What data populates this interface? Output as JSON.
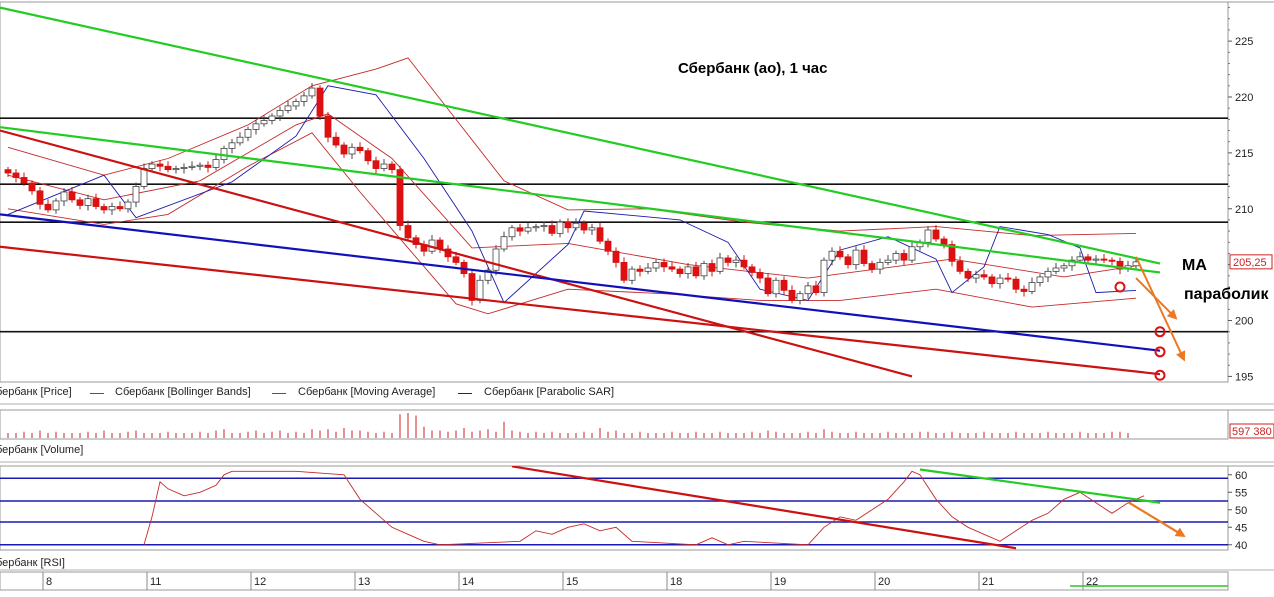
{
  "chart_data": [
    {
      "type": "candlestick",
      "panel": "price",
      "title": "Сбербанк (ао),  1 час",
      "y_ticks": [
        195,
        200,
        205,
        210,
        215,
        220,
        225
      ],
      "ylim": [
        194.5,
        228.5
      ],
      "last_price_label": "205,25",
      "x_day_labels": [
        "8",
        "11",
        "12",
        "13",
        "14",
        "15",
        "18",
        "19",
        "20",
        "21",
        "22"
      ],
      "series_legend": [
        "Сбербанк [Price]",
        "Сбербанк [Bollinger Bands]",
        "Сбербанк [Moving Average]",
        "Сбербанк [Parabolic SAR]"
      ],
      "closes": [
        213.2,
        212.8,
        212.3,
        211.6,
        210.4,
        209.9,
        210.7,
        211.5,
        210.8,
        210.3,
        210.9,
        210.2,
        209.9,
        210.2,
        210.0,
        210.6,
        212.0,
        213.6,
        214.0,
        213.8,
        213.5,
        213.6,
        213.7,
        213.8,
        213.9,
        213.7,
        214.4,
        215.4,
        215.9,
        216.4,
        217.1,
        217.6,
        217.9,
        218.3,
        218.8,
        219.2,
        219.6,
        220.1,
        220.8,
        218.3,
        216.4,
        215.7,
        214.9,
        215.5,
        215.2,
        214.3,
        213.6,
        214.0,
        213.5,
        208.5,
        207.4,
        206.8,
        206.2,
        207.2,
        206.4,
        205.7,
        205.2,
        204.2,
        201.8,
        203.6,
        204.5,
        206.4,
        207.5,
        208.3,
        208.0,
        208.3,
        208.4,
        208.5,
        207.8,
        208.8,
        208.3,
        208.7,
        208.1,
        208.3,
        207.1,
        206.2,
        205.2,
        203.6,
        204.6,
        204.4,
        204.7,
        205.2,
        204.8,
        204.6,
        204.2,
        204.8,
        204.0,
        205.1,
        204.4,
        205.6,
        205.2,
        205.4,
        204.8,
        204.3,
        203.8,
        202.4,
        203.6,
        202.7,
        201.8,
        202.4,
        203.1,
        202.5,
        205.4,
        206.2,
        205.7,
        205.0,
        206.3,
        205.1,
        204.6,
        205.2,
        205.4,
        206.0,
        205.4,
        206.6,
        207.0,
        208.1,
        207.3,
        206.8,
        205.3,
        204.4,
        203.8,
        204.1,
        203.9,
        203.3,
        203.8,
        203.7,
        202.8,
        202.6,
        203.4,
        203.9,
        204.4,
        204.7,
        204.9,
        205.4,
        205.7,
        205.4,
        205.5,
        205.4,
        205.3,
        204.6,
        204.9,
        205.25
      ],
      "moving_average": [
        [
          0,
          213.0
        ],
        [
          12,
          210.8
        ],
        [
          24,
          212.5
        ],
        [
          36,
          217.5
        ],
        [
          40,
          218.5
        ],
        [
          48,
          214.5
        ],
        [
          58,
          206.5
        ],
        [
          70,
          206.9
        ],
        [
          85,
          205.0
        ],
        [
          100,
          203.8
        ],
        [
          118,
          205.5
        ],
        [
          132,
          203.9
        ],
        [
          141,
          204.9
        ]
      ],
      "bollinger_upper": [
        [
          0,
          215.5
        ],
        [
          12,
          213.0
        ],
        [
          20,
          214.5
        ],
        [
          30,
          217.5
        ],
        [
          38,
          221.0
        ],
        [
          46,
          222.5
        ],
        [
          50,
          223.5
        ],
        [
          56,
          218.0
        ],
        [
          62,
          212.5
        ],
        [
          70,
          209.9
        ],
        [
          80,
          210.0
        ],
        [
          92,
          208.8
        ],
        [
          104,
          208.0
        ],
        [
          116,
          208.4
        ],
        [
          128,
          207.6
        ],
        [
          141,
          207.8
        ]
      ],
      "bollinger_lower": [
        [
          0,
          210.0
        ],
        [
          12,
          208.6
        ],
        [
          20,
          209.5
        ],
        [
          30,
          213.8
        ],
        [
          38,
          216.8
        ],
        [
          44,
          211.5
        ],
        [
          50,
          206.5
        ],
        [
          56,
          201.5
        ],
        [
          60,
          200.6
        ],
        [
          70,
          202.8
        ],
        [
          82,
          202.4
        ],
        [
          94,
          201.8
        ],
        [
          104,
          201.8
        ],
        [
          116,
          202.8
        ],
        [
          128,
          201.2
        ],
        [
          141,
          202.0
        ]
      ],
      "parabolic_sar": [
        [
          0,
          209.5
        ],
        [
          12,
          213.0
        ],
        [
          16,
          209.2
        ],
        [
          28,
          212.4
        ],
        [
          36,
          216.5
        ],
        [
          40,
          221.0
        ],
        [
          46,
          220.2
        ],
        [
          52,
          214.5
        ],
        [
          58,
          208.0
        ],
        [
          62,
          201.6
        ],
        [
          70,
          206.8
        ],
        [
          72,
          209.8
        ],
        [
          84,
          209.0
        ],
        [
          90,
          207.0
        ],
        [
          94,
          202.8
        ],
        [
          100,
          201.8
        ],
        [
          104,
          206.3
        ],
        [
          110,
          207.5
        ],
        [
          116,
          205.5
        ],
        [
          118,
          202.5
        ],
        [
          122,
          204.8
        ],
        [
          124,
          208.4
        ],
        [
          130,
          207.7
        ],
        [
          134,
          206.5
        ],
        [
          136,
          202.5
        ],
        [
          141,
          202.7
        ]
      ],
      "horizontal_levels": [
        199.0,
        208.8,
        212.2,
        218.1
      ],
      "trend_lines": [
        {
          "color": "#22cc22",
          "from": [
            -1,
            228.0
          ],
          "to": [
            144,
            205.1
          ]
        },
        {
          "color": "#22cc22",
          "from": [
            -1,
            217.3
          ],
          "to": [
            144,
            204.3
          ]
        },
        {
          "color": "#cc1111",
          "from": [
            -1,
            217.0
          ],
          "to": [
            113,
            195.0
          ]
        },
        {
          "color": "#cc1111",
          "from": [
            -1,
            206.6
          ],
          "to": [
            144,
            195.2
          ]
        },
        {
          "color": "#1111bb",
          "from": [
            -1,
            209.5
          ],
          "to": [
            144,
            197.3
          ]
        }
      ],
      "projection_arrows": [
        {
          "color": "#ee7722",
          "from": [
            141,
            205.7
          ],
          "to": [
            147,
            196.5
          ]
        },
        {
          "color": "#ee7722",
          "from": [
            141,
            203.8
          ],
          "to": [
            146,
            200.2
          ]
        }
      ],
      "markers": [
        {
          "shape": "circle",
          "color": "#dd1111",
          "at": [
            139,
            203.0
          ]
        },
        {
          "shape": "circle",
          "color": "#dd1111",
          "at": [
            144,
            199.0
          ]
        },
        {
          "shape": "circle",
          "color": "#dd1111",
          "at": [
            144,
            197.2
          ]
        },
        {
          "shape": "circle",
          "color": "#dd1111",
          "at": [
            144,
            195.1
          ]
        }
      ],
      "annotations": [
        "MA",
        "параболик"
      ]
    },
    {
      "type": "bar",
      "panel": "volume",
      "series_legend": [
        "Сбербанк [Volume]"
      ],
      "last_value_label": "597 380",
      "values": [
        0.2,
        0.2,
        0.25,
        0.2,
        0.3,
        0.2,
        0.25,
        0.2,
        0.2,
        0.2,
        0.25,
        0.2,
        0.3,
        0.2,
        0.2,
        0.25,
        0.3,
        0.2,
        0.2,
        0.2,
        0.25,
        0.2,
        0.2,
        0.2,
        0.25,
        0.2,
        0.3,
        0.35,
        0.2,
        0.2,
        0.25,
        0.3,
        0.2,
        0.25,
        0.3,
        0.2,
        0.25,
        0.2,
        0.35,
        0.3,
        0.35,
        0.25,
        0.4,
        0.3,
        0.3,
        0.25,
        0.2,
        0.25,
        0.2,
        0.95,
        1.0,
        0.9,
        0.45,
        0.3,
        0.3,
        0.25,
        0.3,
        0.4,
        0.25,
        0.3,
        0.35,
        0.25,
        0.65,
        0.3,
        0.25,
        0.2,
        0.25,
        0.2,
        0.25,
        0.2,
        0.2,
        0.2,
        0.25,
        0.2,
        0.4,
        0.25,
        0.3,
        0.2,
        0.2,
        0.25,
        0.2,
        0.2,
        0.2,
        0.25,
        0.2,
        0.2,
        0.25,
        0.2,
        0.2,
        0.25,
        0.2,
        0.2,
        0.2,
        0.25,
        0.2,
        0.3,
        0.25,
        0.2,
        0.2,
        0.2,
        0.25,
        0.2,
        0.35,
        0.25,
        0.2,
        0.2,
        0.25,
        0.2,
        0.2,
        0.2,
        0.25,
        0.2,
        0.2,
        0.2,
        0.25,
        0.25,
        0.2,
        0.2,
        0.25,
        0.2,
        0.2,
        0.2,
        0.25,
        0.2,
        0.2,
        0.2,
        0.25,
        0.2,
        0.2,
        0.2,
        0.25,
        0.2,
        0.2,
        0.2,
        0.25,
        0.2,
        0.2,
        0.2,
        0.25,
        0.25,
        0.2
      ]
    },
    {
      "type": "line",
      "panel": "rsi",
      "series_legend": [
        "Сбербанк [RSI]"
      ],
      "y_ticks": [
        40,
        45,
        50,
        55,
        60
      ],
      "ylim": [
        38.5,
        62.5
      ],
      "levels": [
        40,
        46.5,
        52.5,
        59
      ],
      "values": [
        [
          17,
          40
        ],
        [
          18,
          48
        ],
        [
          19,
          58
        ],
        [
          20,
          56
        ],
        [
          22,
          54
        ],
        [
          24,
          55
        ],
        [
          26,
          57
        ],
        [
          27,
          60
        ],
        [
          28,
          61
        ],
        [
          36,
          61
        ],
        [
          42,
          60
        ],
        [
          44,
          53
        ],
        [
          46,
          49
        ],
        [
          48,
          45
        ],
        [
          50,
          43
        ],
        [
          52,
          41
        ],
        [
          54,
          40
        ],
        [
          64,
          41
        ],
        [
          66,
          44
        ],
        [
          68,
          43
        ],
        [
          70,
          45
        ],
        [
          72,
          46
        ],
        [
          74,
          44
        ],
        [
          76,
          45
        ],
        [
          78,
          41
        ],
        [
          86,
          40
        ],
        [
          88,
          42
        ],
        [
          90,
          40
        ],
        [
          92,
          41
        ],
        [
          100,
          40
        ],
        [
          102,
          45
        ],
        [
          104,
          48
        ],
        [
          106,
          47
        ],
        [
          108,
          50
        ],
        [
          110,
          53
        ],
        [
          112,
          58
        ],
        [
          113,
          61
        ],
        [
          114,
          60
        ],
        [
          116,
          53
        ],
        [
          118,
          48
        ],
        [
          120,
          45
        ],
        [
          122,
          43
        ],
        [
          124,
          41
        ],
        [
          126,
          44
        ],
        [
          128,
          47
        ],
        [
          130,
          49
        ],
        [
          132,
          53
        ],
        [
          134,
          55
        ],
        [
          136,
          52
        ],
        [
          138,
          49
        ],
        [
          140,
          52
        ],
        [
          142,
          54
        ]
      ],
      "trend_lines": [
        {
          "color": "#cc1111",
          "from": [
            63,
            62.4
          ],
          "to": [
            126,
            39.0
          ]
        },
        {
          "color": "#22cc22",
          "from": [
            114,
            61.5
          ],
          "to": [
            144,
            52.0
          ]
        },
        {
          "color": "#ee7722",
          "from": [
            140,
            52.2
          ],
          "to": [
            147,
            42.5
          ]
        }
      ]
    }
  ]
}
